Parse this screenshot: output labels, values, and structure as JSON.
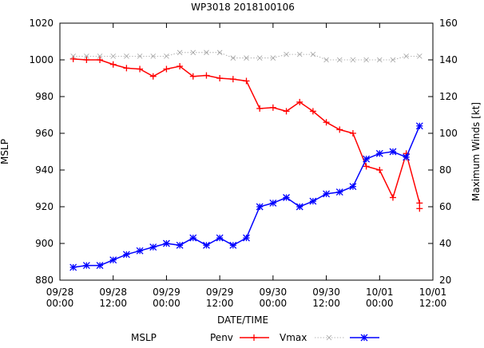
{
  "chart_data": {
    "type": "line",
    "title": "WP3018 2018100106",
    "xlabel": "DATE/TIME",
    "ylabel": "MSLP",
    "y2label": "Maximum Winds [kt]",
    "x_unit": "hours since 09/28 00:00",
    "xlim": [
      0,
      84
    ],
    "ylim": [
      880,
      1020
    ],
    "y2lim": [
      20,
      160
    ],
    "grid": false,
    "legend_position": "bottom",
    "x_ticks": [
      {
        "x": 0,
        "line1": "09/28",
        "line2": "00:00"
      },
      {
        "x": 12,
        "line1": "09/28",
        "line2": "12:00"
      },
      {
        "x": 24,
        "line1": "09/29",
        "line2": "00:00"
      },
      {
        "x": 36,
        "line1": "09/29",
        "line2": "12:00"
      },
      {
        "x": 48,
        "line1": "09/30",
        "line2": "00:00"
      },
      {
        "x": 60,
        "line1": "09/30",
        "line2": "12:00"
      },
      {
        "x": 72,
        "line1": "10/01",
        "line2": "00:00"
      },
      {
        "x": 84,
        "line1": "10/01",
        "line2": "12:00"
      }
    ],
    "y_ticks": [
      "880",
      "900",
      "920",
      "940",
      "960",
      "980",
      "1000",
      "1020"
    ],
    "y2_ticks": [
      "20",
      "40",
      "60",
      "80",
      "100",
      "120",
      "140",
      "160"
    ],
    "legend_label": "MSLP",
    "series": [
      {
        "name": "Penv",
        "axis": "left",
        "color": "#ff0000",
        "marker": "plus",
        "x": [
          3,
          6,
          9,
          12,
          15,
          18,
          21,
          24,
          27,
          30,
          33,
          36,
          39,
          42,
          45,
          48,
          51,
          54,
          57,
          60,
          63,
          66,
          69,
          72,
          75,
          78,
          81
        ],
        "y": [
          1000.5,
          1000,
          1000,
          997.5,
          995.5,
          995,
          991,
          995,
          996.5,
          991,
          991.5,
          990,
          989.5,
          988.5,
          973.5,
          974,
          972,
          977,
          972,
          966,
          962,
          960,
          942,
          940,
          925,
          949,
          922
        ]
      },
      {
        "name": "Penv",
        "axis": "left",
        "color": "#ff0000",
        "marker": "plus",
        "in_legend": false,
        "x": [
          81
        ],
        "y": [
          919
        ]
      },
      {
        "name": "Vmax",
        "axis": "right",
        "color": "#a0a0a0",
        "marker": "cross",
        "dashed": true,
        "x": [
          3,
          6,
          9,
          12,
          15,
          18,
          21,
          24,
          27,
          30,
          33,
          36,
          39,
          42,
          45,
          48,
          51,
          54,
          57,
          60,
          63,
          66,
          69,
          72,
          75,
          78,
          81
        ],
        "y": [
          142,
          142,
          142,
          142,
          142,
          142,
          142,
          142,
          144,
          144,
          144,
          144,
          141,
          141,
          141,
          141,
          143,
          143,
          143,
          140,
          140,
          140,
          140,
          140,
          140,
          142,
          142
        ]
      },
      {
        "name": "Vmax",
        "axis": "right",
        "color": "#0000ff",
        "marker": "star",
        "x": [
          3,
          6,
          9,
          12,
          15,
          18,
          21,
          24,
          27,
          30,
          33,
          36,
          39,
          42,
          45,
          48,
          51,
          54,
          57,
          60,
          63,
          66,
          69,
          72,
          75,
          78,
          81
        ],
        "y": [
          27,
          28,
          28,
          31,
          34,
          36,
          38,
          40,
          39,
          43,
          39,
          43,
          39,
          43,
          60,
          62,
          65,
          60,
          63,
          67,
          68,
          71,
          86,
          89,
          90,
          87,
          104
        ]
      }
    ]
  }
}
